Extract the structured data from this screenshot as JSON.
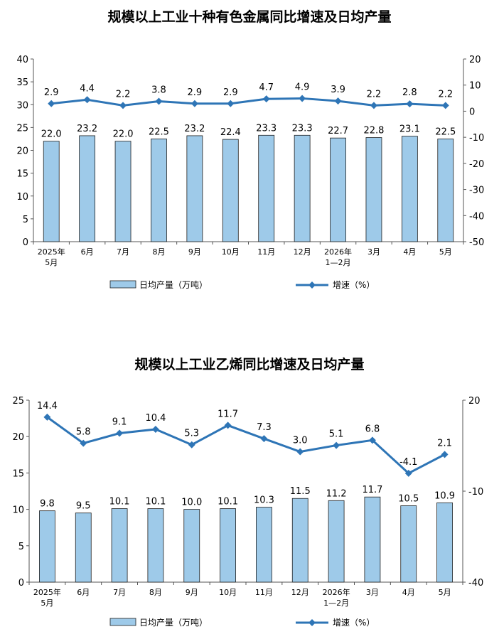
{
  "charts": [
    {
      "title": "规模以上工业十种有色金属同比增速及日均产量",
      "chart_data": {
        "type": "bar",
        "categories": [
          "2025年\n5月",
          "6月",
          "7月",
          "8月",
          "9月",
          "10月",
          "11月",
          "12月",
          "2026年\n1—2月",
          "3月",
          "4月",
          "5月"
        ],
        "series": [
          {
            "name": "日均产量（万吨）",
            "type": "bar",
            "axis": "left",
            "values": [
              22.0,
              23.2,
              22.0,
              22.5,
              23.2,
              22.4,
              23.3,
              23.3,
              22.7,
              22.8,
              23.1,
              22.5
            ],
            "labels": [
              "22.0",
              "23.2",
              "22.0",
              "22.5",
              "23.2",
              "22.4",
              "23.3",
              "23.3",
              "22.7",
              "22.8",
              "23.1",
              "22.5"
            ]
          },
          {
            "name": "增速（%）",
            "type": "line",
            "axis": "right",
            "values": [
              2.9,
              4.4,
              2.2,
              3.8,
              2.9,
              2.9,
              4.7,
              4.9,
              3.9,
              2.2,
              2.8,
              2.2
            ],
            "labels": [
              "2.9",
              "4.4",
              "2.2",
              "3.8",
              "2.9",
              "2.9",
              "4.7",
              "4.9",
              "3.9",
              "2.2",
              "2.8",
              "2.2"
            ]
          }
        ],
        "ylim_left": [
          0,
          40
        ],
        "yticks_left": [
          "0",
          "5",
          "10",
          "15",
          "20",
          "25",
          "30",
          "35",
          "40"
        ],
        "ylim_right": [
          -50,
          20
        ],
        "yticks_right": [
          "-50",
          "-40",
          "-30",
          "-20",
          "-10",
          "0",
          "10",
          "20"
        ],
        "legend": [
          "日均产量（万吨）",
          "增速（%）"
        ],
        "grid": false,
        "legend_position": "bottom"
      }
    },
    {
      "title": "规模以上工业乙烯同比增速及日均产量",
      "chart_data": {
        "type": "bar",
        "categories": [
          "2025年\n5月",
          "6月",
          "7月",
          "8月",
          "9月",
          "10月",
          "11月",
          "12月",
          "2026年\n1—2月",
          "3月",
          "4月",
          "5月"
        ],
        "series": [
          {
            "name": "日均产量（万吨）",
            "type": "bar",
            "axis": "left",
            "values": [
              9.8,
              9.5,
              10.1,
              10.1,
              10.0,
              10.1,
              10.3,
              11.5,
              11.2,
              11.7,
              10.5,
              10.9
            ],
            "labels": [
              "9.8",
              "9.5",
              "10.1",
              "10.1",
              "10.0",
              "10.1",
              "10.3",
              "11.5",
              "11.2",
              "11.7",
              "10.5",
              "10.9"
            ]
          },
          {
            "name": "增速（%）",
            "type": "line",
            "axis": "right",
            "values": [
              14.4,
              5.8,
              9.1,
              10.4,
              5.3,
              11.7,
              7.3,
              3.0,
              5.1,
              6.8,
              -4.1,
              2.1
            ],
            "labels": [
              "14.4",
              "5.8",
              "9.1",
              "10.4",
              "5.3",
              "11.7",
              "7.3",
              "3.0",
              "5.1",
              "6.8",
              "-4.1",
              "2.1"
            ]
          }
        ],
        "ylim_left": [
          0,
          25
        ],
        "yticks_left": [
          "0",
          "5",
          "10",
          "15",
          "20",
          "25"
        ],
        "ylim_right": [
          -40,
          20
        ],
        "yticks_right": [
          "-40",
          "-10",
          "20"
        ],
        "legend": [
          "日均产量（万吨）",
          "增速（%）"
        ],
        "grid": false,
        "legend_position": "bottom"
      }
    }
  ],
  "colors": {
    "bar_fill": "#9ecae9",
    "bar_stroke": "#1f1f1f",
    "line": "#2e75b6",
    "axis": "#555555",
    "text": "#000000"
  }
}
